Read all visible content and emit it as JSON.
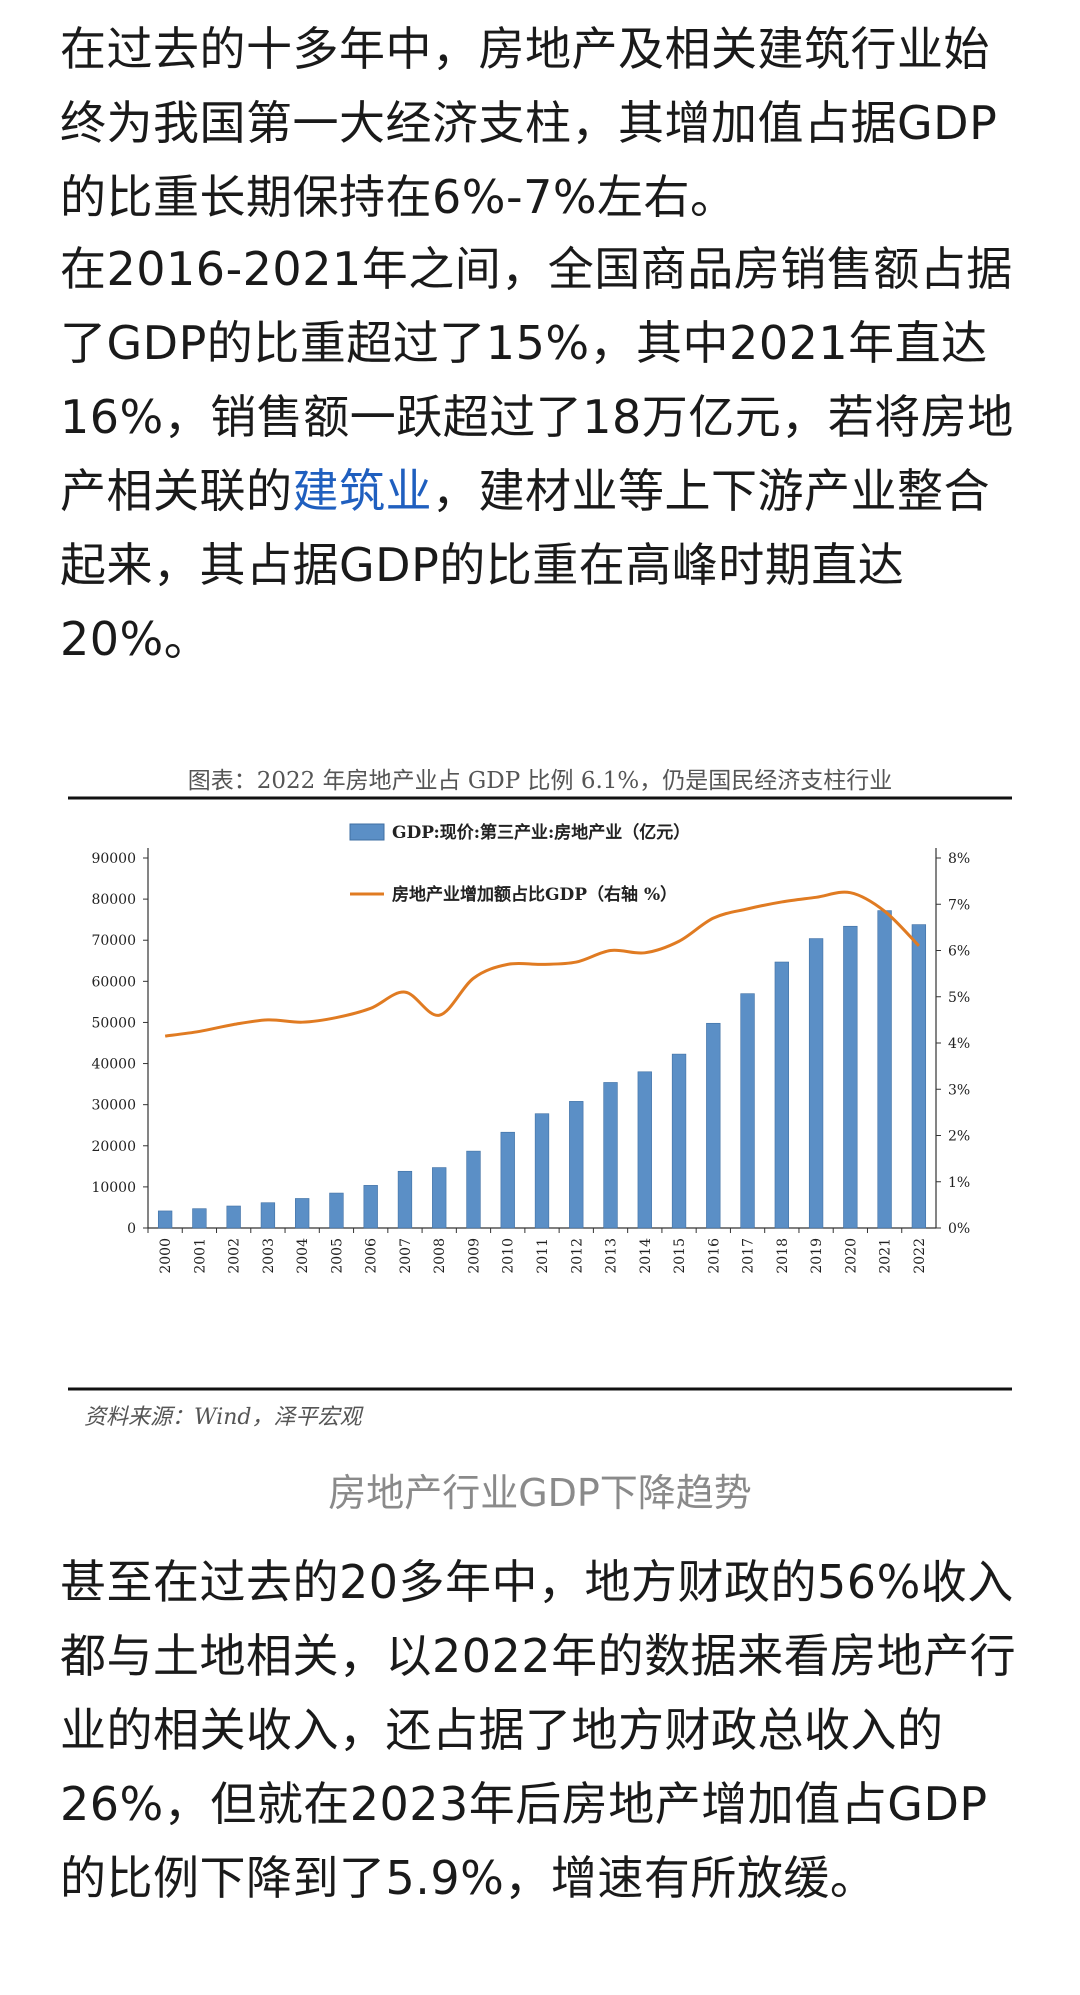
{
  "paragraphs": [
    {
      "segments": [
        {
          "text": "在过去的十多年中，房地产及相关建筑行业始终为我国第一大经济支柱，其增加值占据GDP的比重长期保持在6%-7%左右。"
        }
      ]
    },
    {
      "segments": [
        {
          "text": "在2016-2021年之间，全国商品房销售额占据了GDP的比重超过了15%，其中2021年直达16%，销售额一跃超过了18万亿元，若将房地产相关联的"
        },
        {
          "text": "建筑业",
          "link": true
        },
        {
          "text": "，建材业等上下游产业整合起来，其占据GDP的比重在高峰时期直达20%。"
        }
      ]
    },
    {
      "segments": [
        {
          "text": "甚至在过去的20多年中，地方财政的56%收入都与土地相关，以2022年的数据来看房地产行业的相关收入，还占据了地方财政总收入的26%，但就在2023年后房地产增加值占GDP的比例下降到了5.9%，增速有所放缓。"
        }
      ]
    }
  ],
  "figure": {
    "caption": "房地产行业GDP下降趋势",
    "source": "资料来源：Wind，泽平宏观"
  },
  "chart_data": {
    "type": "bar",
    "title": "图表：2022 年房地产业占 GDP 比例 6.1%，仍是国民经济支柱行业",
    "categories": [
      "2000",
      "2001",
      "2002",
      "2003",
      "2004",
      "2005",
      "2006",
      "2007",
      "2008",
      "2009",
      "2010",
      "2011",
      "2012",
      "2013",
      "2014",
      "2015",
      "2016",
      "2017",
      "2018",
      "2019",
      "2020",
      "2021",
      "2022"
    ],
    "series": [
      {
        "name": "GDP:现价:第三产业:房地产业（亿元）",
        "type": "bar",
        "axis": "left",
        "color": "#5b8fc6",
        "values": [
          4150,
          4700,
          5350,
          6150,
          7180,
          8500,
          10370,
          13800,
          14700,
          18700,
          23300,
          27800,
          30800,
          35400,
          38000,
          42300,
          49800,
          57000,
          64700,
          70400,
          73400,
          77200,
          73800
        ]
      },
      {
        "name": "房地产业增加额占比GDP（右轴 %）",
        "type": "line",
        "axis": "right",
        "color": "#e07b22",
        "values": [
          4.15,
          4.25,
          4.4,
          4.5,
          4.45,
          4.55,
          4.75,
          5.1,
          4.6,
          5.4,
          5.7,
          5.7,
          5.75,
          6.0,
          5.95,
          6.2,
          6.7,
          6.9,
          7.05,
          7.15,
          7.25,
          6.85,
          6.1
        ]
      }
    ],
    "y_left": {
      "min": 0,
      "max": 90000,
      "ticks": [
        "0",
        "10000",
        "20000",
        "30000",
        "40000",
        "50000",
        "60000",
        "70000",
        "80000",
        "90000"
      ]
    },
    "y_right": {
      "min": 0,
      "max": 8,
      "ticks": [
        "0%",
        "1%",
        "2%",
        "3%",
        "4%",
        "5%",
        "6%",
        "7%",
        "8%"
      ]
    },
    "legend_position": "top-center",
    "grid": false
  }
}
